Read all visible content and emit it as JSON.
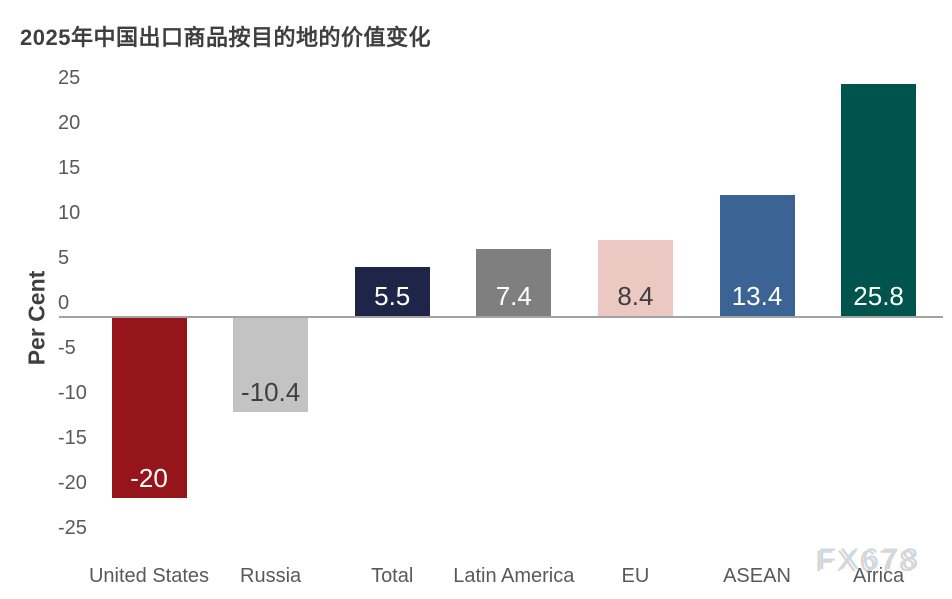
{
  "title": "2025年中国出口商品按目的地的价值变化",
  "watermark": "FX678",
  "chart_data": {
    "type": "bar",
    "title": "2025年中国出口商品按目的地的价值变化",
    "ylabel": "Per Cent",
    "xlabel": "",
    "categories": [
      "United States",
      "Russia",
      "Total",
      "Latin America",
      "EU",
      "ASEAN",
      "Africa"
    ],
    "values": [
      -20,
      -10.4,
      5.5,
      7.4,
      8.4,
      13.4,
      25.8
    ],
    "value_labels": [
      "-20",
      "-10.4",
      "5.5",
      "7.4",
      "8.4",
      "13.4",
      "25.8"
    ],
    "bar_colors": [
      "#96151a",
      "#c3c3c3",
      "#1f2449",
      "#7f7f7f",
      "#ecc8c3",
      "#3b6393",
      "#00544d"
    ],
    "value_label_colors": [
      "#ffffff",
      "#3f3f3f",
      "#ffffff",
      "#ffffff",
      "#3f3f3f",
      "#ffffff",
      "#ffffff"
    ],
    "yticks": [
      25,
      20,
      15,
      10,
      5,
      0,
      -5,
      -10,
      -15,
      -20,
      -25
    ],
    "ylim": [
      -25,
      25
    ],
    "grid": false,
    "legend": false,
    "baseline_color": "#a3a3a3"
  }
}
